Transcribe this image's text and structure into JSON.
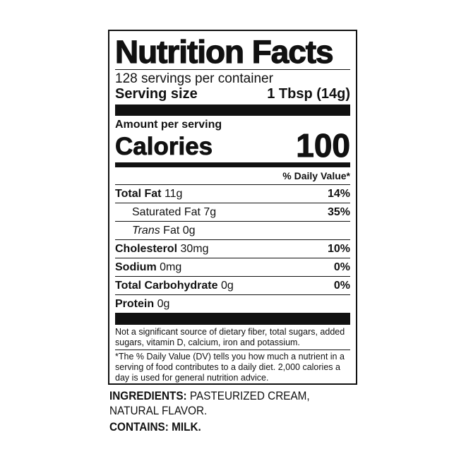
{
  "title": "Nutrition Facts",
  "servings_per_container": "128 servings per container",
  "serving_size_label": "Serving size",
  "serving_size_value": "1 Tbsp (14g)",
  "amount_per_serving": "Amount per serving",
  "calories_label": "Calories",
  "calories_value": "100",
  "daily_value_header": "% Daily Value*",
  "nutrients": [
    {
      "name": "Total Fat",
      "amount": "11g",
      "dv": "14%"
    },
    {
      "name": "Saturated Fat",
      "amount": "7g",
      "dv": "35%"
    },
    {
      "name": "Trans",
      "name_suffix": "Fat",
      "amount": "0g",
      "dv": ""
    },
    {
      "name": "Cholesterol",
      "amount": "30mg",
      "dv": "10%"
    },
    {
      "name": "Sodium",
      "amount": "0mg",
      "dv": "0%"
    },
    {
      "name": "Total Carbohydrate",
      "amount": "0g",
      "dv": "0%"
    },
    {
      "name": "Protein",
      "amount": "0g",
      "dv": ""
    }
  ],
  "not_significant": "Not a significant source of dietary fiber, total sugars, added sugars, vitamin D, calcium, iron and potassium.",
  "footnote": "*The % Daily Value (DV) tells you how much a nutrient in a serving of food contributes to a daily diet. 2,000 calories a day is used for general nutrition advice.",
  "ingredients_label": "INGREDIENTS:",
  "ingredients_text": "PASTEURIZED CREAM, NATURAL FLAVOR.",
  "contains": "CONTAINS: MILK."
}
